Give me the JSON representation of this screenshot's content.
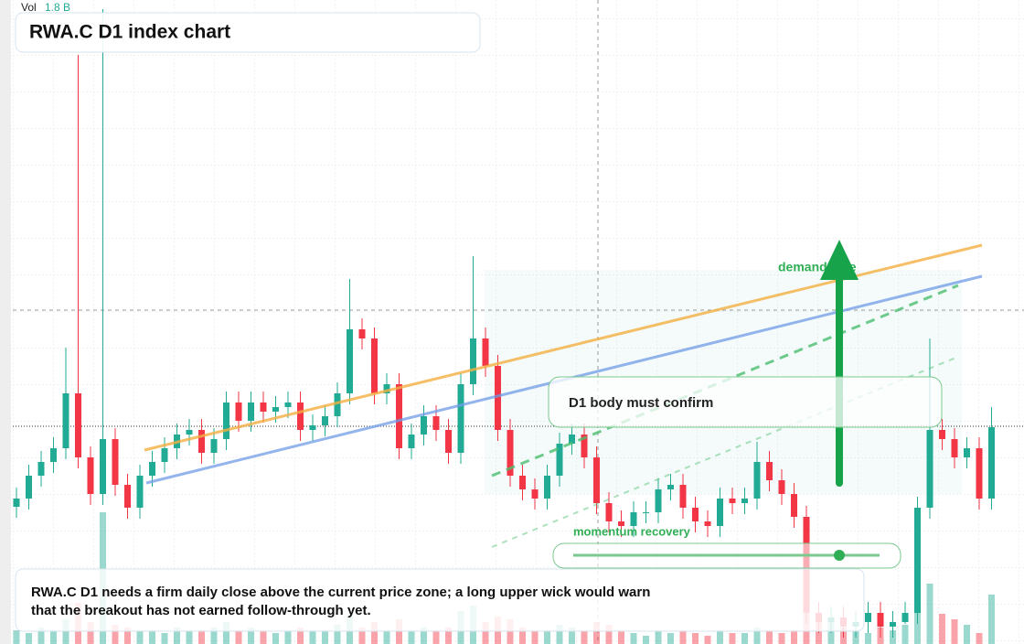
{
  "chart_data": {
    "type": "candlestick",
    "title": "RWA.C D1 index chart",
    "volume_title": "Vol",
    "volume_last_label": "1.8 B",
    "up_color": "#22ab94",
    "down_color": "#f23645",
    "ylim": [
      0,
      704
    ],
    "volume_ylim": [
      0,
      6
    ],
    "open": [
      150,
      159,
      184,
      199,
      214,
      274,
      204,
      164,
      224,
      174,
      149,
      184,
      199,
      214,
      229,
      234,
      209,
      224,
      264,
      244,
      264,
      254,
      259,
      264,
      234,
      239,
      249,
      274,
      344,
      334,
      274,
      284,
      214,
      229,
      249,
      234,
      209,
      284,
      334,
      304,
      234,
      184,
      169,
      159,
      184,
      219,
      229,
      204,
      154,
      134,
      129,
      144,
      144,
      169,
      174,
      149,
      134,
      129,
      159,
      154,
      159,
      199,
      179,
      164,
      139,
      34,
      24,
      29,
      19,
      24,
      34,
      19,
      24,
      34,
      149,
      234,
      224,
      204,
      214,
      159
    ],
    "high": [
      171,
      196,
      211,
      226,
      324,
      644,
      216,
      694,
      236,
      186,
      196,
      211,
      226,
      241,
      246,
      246,
      236,
      276,
      276,
      276,
      276,
      271,
      276,
      276,
      251,
      261,
      286,
      399,
      356,
      346,
      296,
      296,
      241,
      261,
      261,
      246,
      296,
      424,
      346,
      316,
      246,
      196,
      181,
      196,
      231,
      241,
      241,
      216,
      166,
      146,
      156,
      156,
      181,
      186,
      186,
      161,
      146,
      171,
      171,
      171,
      221,
      211,
      191,
      176,
      151,
      46,
      41,
      41,
      36,
      46,
      46,
      36,
      46,
      161,
      334,
      246,
      236,
      226,
      226,
      259
    ],
    "low": [
      138,
      147,
      172,
      187,
      202,
      192,
      152,
      152,
      162,
      137,
      137,
      172,
      187,
      202,
      217,
      197,
      197,
      212,
      232,
      232,
      242,
      242,
      247,
      222,
      222,
      227,
      237,
      262,
      322,
      262,
      262,
      202,
      202,
      217,
      222,
      197,
      197,
      272,
      292,
      222,
      172,
      157,
      147,
      147,
      172,
      207,
      192,
      142,
      122,
      117,
      117,
      132,
      132,
      157,
      137,
      122,
      117,
      117,
      142,
      142,
      147,
      167,
      152,
      127,
      22,
      12,
      12,
      7,
      7,
      12,
      7,
      7,
      22,
      22,
      137,
      212,
      192,
      192,
      147,
      147
    ],
    "close": [
      159,
      184,
      199,
      214,
      274,
      204,
      164,
      224,
      174,
      149,
      184,
      199,
      214,
      229,
      234,
      209,
      224,
      264,
      244,
      264,
      254,
      259,
      264,
      234,
      239,
      249,
      274,
      344,
      334,
      274,
      284,
      214,
      229,
      249,
      234,
      209,
      284,
      334,
      304,
      234,
      184,
      169,
      159,
      184,
      219,
      229,
      204,
      154,
      134,
      129,
      144,
      144,
      169,
      174,
      149,
      134,
      129,
      159,
      154,
      159,
      199,
      179,
      164,
      139,
      34,
      24,
      29,
      19,
      24,
      34,
      19,
      24,
      34,
      149,
      234,
      224,
      204,
      214,
      159,
      237
    ],
    "volume": [
      0.5,
      0.4,
      0.6,
      0.5,
      0.9,
      1.5,
      0.8,
      4.8,
      0.7,
      0.6,
      0.5,
      0.5,
      0.4,
      0.6,
      0.5,
      0.5,
      0.6,
      0.8,
      0.5,
      0.6,
      0.5,
      0.4,
      0.5,
      0.6,
      0.5,
      0.5,
      0.7,
      1.0,
      0.6,
      0.8,
      0.5,
      0.9,
      0.5,
      0.6,
      0.5,
      0.6,
      1.2,
      1.4,
      0.8,
      1.0,
      0.9,
      0.6,
      0.5,
      0.5,
      0.7,
      0.6,
      0.5,
      0.8,
      0.7,
      0.5,
      0.4,
      0.3,
      0.5,
      0.4,
      0.5,
      0.4,
      0.3,
      0.5,
      0.4,
      0.4,
      0.6,
      0.5,
      0.4,
      0.5,
      1.3,
      1.0,
      0.8,
      0.6,
      0.5,
      0.4,
      0.6,
      0.5,
      0.7,
      1.8,
      2.2,
      1.1,
      0.9,
      0.7,
      0.4,
      1.8
    ],
    "annotations": {
      "demand": "demand side",
      "confirm": "D1 body must confirm",
      "momentum": "momentum recovery"
    },
    "note": [
      "RWA.C D1 needs a firm daily close above the current price zone; a long upper wick would warn",
      "that the breakout has not earned follow-through yet."
    ]
  }
}
